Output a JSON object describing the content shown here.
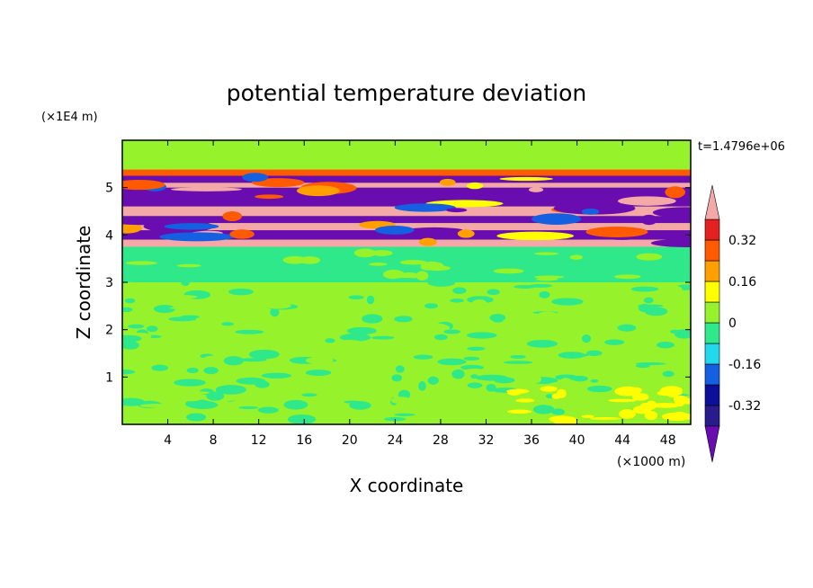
{
  "chart_data": {
    "type": "heatmap",
    "title": "potential temperature deviation",
    "xlabel": "X coordinate",
    "ylabel": "Z coordinate",
    "x_unit": "(×1000 m)",
    "y_unit": "(×1E4 m)",
    "time_label": "t=1.4796e+06",
    "xlim": [
      0,
      50
    ],
    "ylim": [
      0,
      6
    ],
    "xticks": [
      4,
      8,
      12,
      16,
      20,
      24,
      28,
      32,
      36,
      40,
      44,
      48
    ],
    "yticks": [
      1,
      2,
      3,
      4,
      5
    ],
    "colorbar": {
      "levels": [
        -0.4,
        -0.32,
        -0.24,
        -0.16,
        -0.08,
        0,
        0.08,
        0.16,
        0.24,
        0.32,
        0.4
      ],
      "labels": [
        {
          "value": 0.32,
          "text": "0.32"
        },
        {
          "value": 0.16,
          "text": "0.16"
        },
        {
          "value": 0,
          "text": "0"
        },
        {
          "value": -0.16,
          "text": "-0.16"
        },
        {
          "value": -0.32,
          "text": "-0.32"
        }
      ],
      "bins": [
        {
          "range": "< -0.4",
          "color": "#6a0db0"
        },
        {
          "range": "-0.4 to -0.32",
          "color": "#2a1b8c"
        },
        {
          "range": "-0.32 to -0.24",
          "color": "#0b0f9a"
        },
        {
          "range": "-0.24 to -0.16",
          "color": "#1560e0"
        },
        {
          "range": "-0.16 to -0.08",
          "color": "#22d8ec"
        },
        {
          "range": "-0.08 to 0",
          "color": "#2ee88a"
        },
        {
          "range": "0 to 0.08",
          "color": "#96f22a"
        },
        {
          "range": "0.08 to 0.16",
          "color": "#ffff00"
        },
        {
          "range": "0.16 to 0.24",
          "color": "#ffa000"
        },
        {
          "range": "0.24 to 0.32",
          "color": "#ff5a00"
        },
        {
          "range": "0.32 to 0.4",
          "color": "#e52020"
        },
        {
          "range": "> 0.4",
          "color": "#f5a8a8"
        }
      ]
    },
    "bands": [
      {
        "z": [
          5.38,
          5.9
        ],
        "value": 0.05
      },
      {
        "z": [
          5.25,
          5.38
        ],
        "value": 0.3
      },
      {
        "z": [
          5.1,
          5.25
        ],
        "value": -0.45
      },
      {
        "z": [
          5.0,
          5.1
        ],
        "value": 0.45
      },
      {
        "z": [
          4.6,
          5.0
        ],
        "value": -0.45
      },
      {
        "z": [
          4.4,
          4.6
        ],
        "value": 0.45
      },
      {
        "z": [
          4.25,
          4.4
        ],
        "value": -0.45
      },
      {
        "z": [
          4.1,
          4.25
        ],
        "value": 0.45
      },
      {
        "z": [
          3.9,
          4.1
        ],
        "value": -0.45
      },
      {
        "z": [
          3.75,
          3.9
        ],
        "value": 0.45
      },
      {
        "z": [
          3.0,
          3.75
        ],
        "value": -0.04
      },
      {
        "z": [
          0.75,
          3.0
        ],
        "value": 0.05
      },
      {
        "z": [
          0.0,
          0.75
        ],
        "value": 0.03
      }
    ]
  }
}
